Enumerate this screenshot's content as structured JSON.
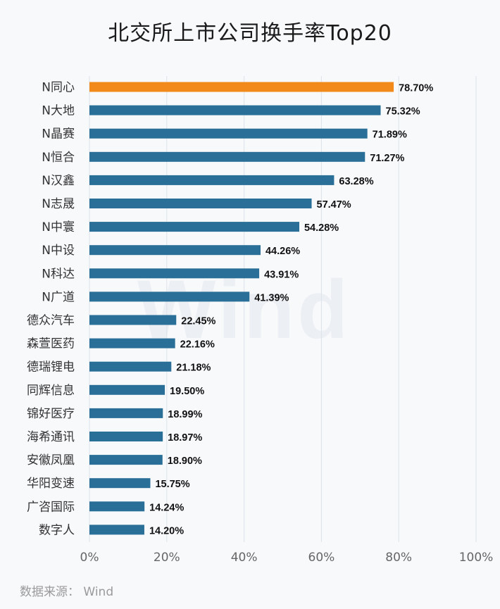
{
  "title": "北交所上市公司换手率Top20",
  "watermark": "Wind",
  "source": "数据来源： Wind",
  "colors": {
    "bar": "#2a6f97",
    "highlight": "#f28a1b",
    "grid": "#dde3ea",
    "axis": "#666666"
  },
  "chart_data": {
    "type": "bar",
    "orientation": "horizontal",
    "title": "北交所上市公司换手率Top20",
    "xlabel": "",
    "ylabel": "",
    "xlim": [
      0,
      100
    ],
    "x_ticks": [
      "0%",
      "20%",
      "40%",
      "60%",
      "80%",
      "100%"
    ],
    "grid": "vertical",
    "categories": [
      "N同心",
      "N大地",
      "N晶赛",
      "N恒合",
      "N汉鑫",
      "N志晟",
      "N中寰",
      "N中设",
      "N科达",
      "N广道",
      "德众汽车",
      "森萱医药",
      "德瑞锂电",
      "同辉信息",
      "锦好医疗",
      "海希通讯",
      "安徽凤凰",
      "华阳变速",
      "广咨国际",
      "数字人"
    ],
    "values": [
      78.7,
      75.32,
      71.89,
      71.27,
      63.28,
      57.47,
      54.28,
      44.26,
      43.91,
      41.39,
      22.45,
      22.16,
      21.18,
      19.5,
      18.99,
      18.97,
      18.9,
      15.75,
      14.24,
      14.2
    ],
    "value_labels": [
      "78.70%",
      "75.32%",
      "71.89%",
      "71.27%",
      "63.28%",
      "57.47%",
      "54.28%",
      "44.26%",
      "43.91%",
      "41.39%",
      "22.45%",
      "22.16%",
      "21.18%",
      "19.50%",
      "18.99%",
      "18.97%",
      "18.90%",
      "15.75%",
      "14.24%",
      "14.20%"
    ],
    "highlight_index": 0
  }
}
